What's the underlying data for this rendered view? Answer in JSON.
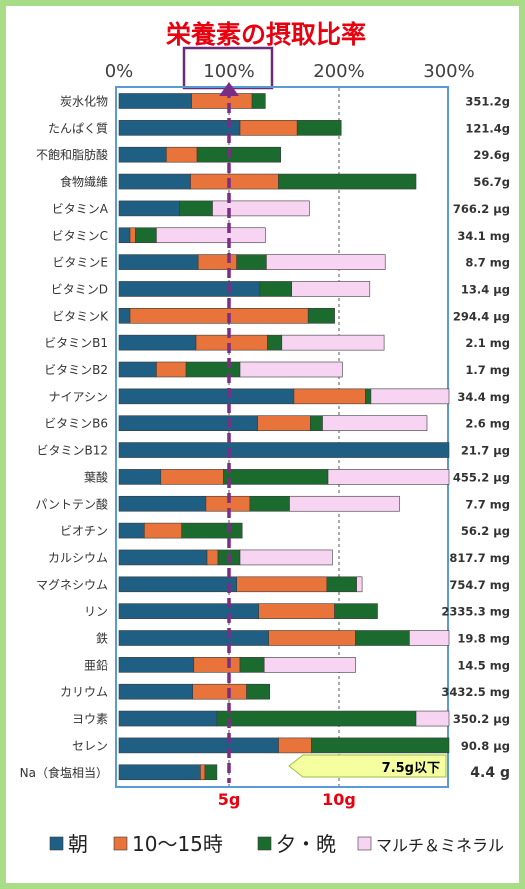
{
  "chart_data": {
    "type": "bar",
    "stacked": true,
    "orientation": "horizontal",
    "title": "栄養素の摂取比率",
    "x_ticks": [
      "0%",
      "100%",
      "200%",
      "300%"
    ],
    "xlim": [
      0,
      300
    ],
    "grid": "dashed vertical lines at 100% and 200%",
    "highlight_tick": "100%",
    "colors": {
      "title": "#e8000f",
      "highlight_box": "#6b2a7a",
      "ref_line": "#7b2d86",
      "plot_border": "#5b9bd5",
      "sodium_labels": "#e8000f",
      "limit_arrow": "#f5ffa0",
      "limit_arrow_border": "#9bc040"
    },
    "series": [
      {
        "name": "朝",
        "color": "#1f5f84"
      },
      {
        "name": "10〜15時",
        "color": "#e8743b"
      },
      {
        "name": "夕・晩",
        "color": "#1c6b2e"
      },
      {
        "name": "マルチ＆ミネラル",
        "color": "#f6d4f2"
      }
    ],
    "rows": [
      {
        "label": "炭水化物",
        "amount": "351.2g",
        "segments": [
          66,
          55,
          12,
          0
        ]
      },
      {
        "label": "たんぱく質",
        "amount": "121.4g",
        "segments": [
          110,
          52,
          40,
          0
        ]
      },
      {
        "label": "不飽和脂肪酸",
        "amount": "29.6g",
        "segments": [
          43,
          28,
          76,
          0
        ]
      },
      {
        "label": "食物繊維",
        "amount": "56.7g",
        "segments": [
          65,
          80,
          125,
          0
        ]
      },
      {
        "label": "ビタミンA",
        "amount": "766.2 µg",
        "segments": [
          55,
          0,
          30,
          88
        ]
      },
      {
        "label": "ビタミンC",
        "amount": "34.1 mg",
        "segments": [
          10,
          5,
          19,
          99
        ]
      },
      {
        "label": "ビタミンE",
        "amount": "8.7 mg",
        "segments": [
          72,
          35,
          27,
          108
        ]
      },
      {
        "label": "ビタミンD",
        "amount": "13.4 µg",
        "segments": [
          128,
          0,
          29,
          71
        ]
      },
      {
        "label": "ビタミンK",
        "amount": "294.4 µg",
        "segments": [
          10,
          162,
          24,
          0
        ]
      },
      {
        "label": "ビタミンB1",
        "amount": "2.1 mg",
        "segments": [
          70,
          65,
          13,
          93
        ]
      },
      {
        "label": "ビタミンB2",
        "amount": "1.7 mg",
        "segments": [
          34,
          27,
          49,
          93
        ]
      },
      {
        "label": "ナイアシン",
        "amount": "34.4 mg",
        "segments": [
          159,
          65,
          5,
          71
        ]
      },
      {
        "label": "ビタミンB6",
        "amount": "2.6 mg",
        "segments": [
          126,
          48,
          11,
          95
        ]
      },
      {
        "label": "ビタミンB12",
        "amount": "21.7 µg",
        "segments": [
          300,
          0,
          0,
          0
        ]
      },
      {
        "label": "葉酸",
        "amount": "455.2 µg",
        "segments": [
          38,
          57,
          95,
          110
        ]
      },
      {
        "label": "パントテン酸",
        "amount": "7.7 mg",
        "segments": [
          79,
          40,
          36,
          100
        ]
      },
      {
        "label": "ビオチン",
        "amount": "56.2 µg",
        "segments": [
          23,
          34,
          55,
          0
        ]
      },
      {
        "label": "カルシウム",
        "amount": "817.7 mg",
        "segments": [
          80,
          10,
          20,
          84
        ]
      },
      {
        "label": "マグネシウム",
        "amount": "754.7 mg",
        "segments": [
          107,
          82,
          27,
          5
        ]
      },
      {
        "label": "リン",
        "amount": "2335.3 mg",
        "segments": [
          127,
          69,
          39,
          0
        ]
      },
      {
        "label": "鉄",
        "amount": "19.8 mg",
        "segments": [
          136,
          79,
          49,
          36
        ]
      },
      {
        "label": "亜鉛",
        "amount": "14.5 mg",
        "segments": [
          68,
          42,
          22,
          83
        ]
      },
      {
        "label": "カリウム",
        "amount": "3432.5 mg",
        "segments": [
          67,
          49,
          21,
          0
        ]
      },
      {
        "label": "ヨウ素",
        "amount": "350.2 µg",
        "segments": [
          89,
          0,
          181,
          30
        ]
      },
      {
        "label": "セレン",
        "amount": "90.8 µg",
        "segments": [
          145,
          30,
          125,
          0
        ]
      },
      {
        "label": "Na（食塩相当）",
        "amount": "4.4 g",
        "segments": [
          74,
          4,
          11,
          0
        ]
      }
    ],
    "sodium_ticks": [
      "5g",
      "10g"
    ],
    "sodium_limit_label": "7.5g以下"
  }
}
